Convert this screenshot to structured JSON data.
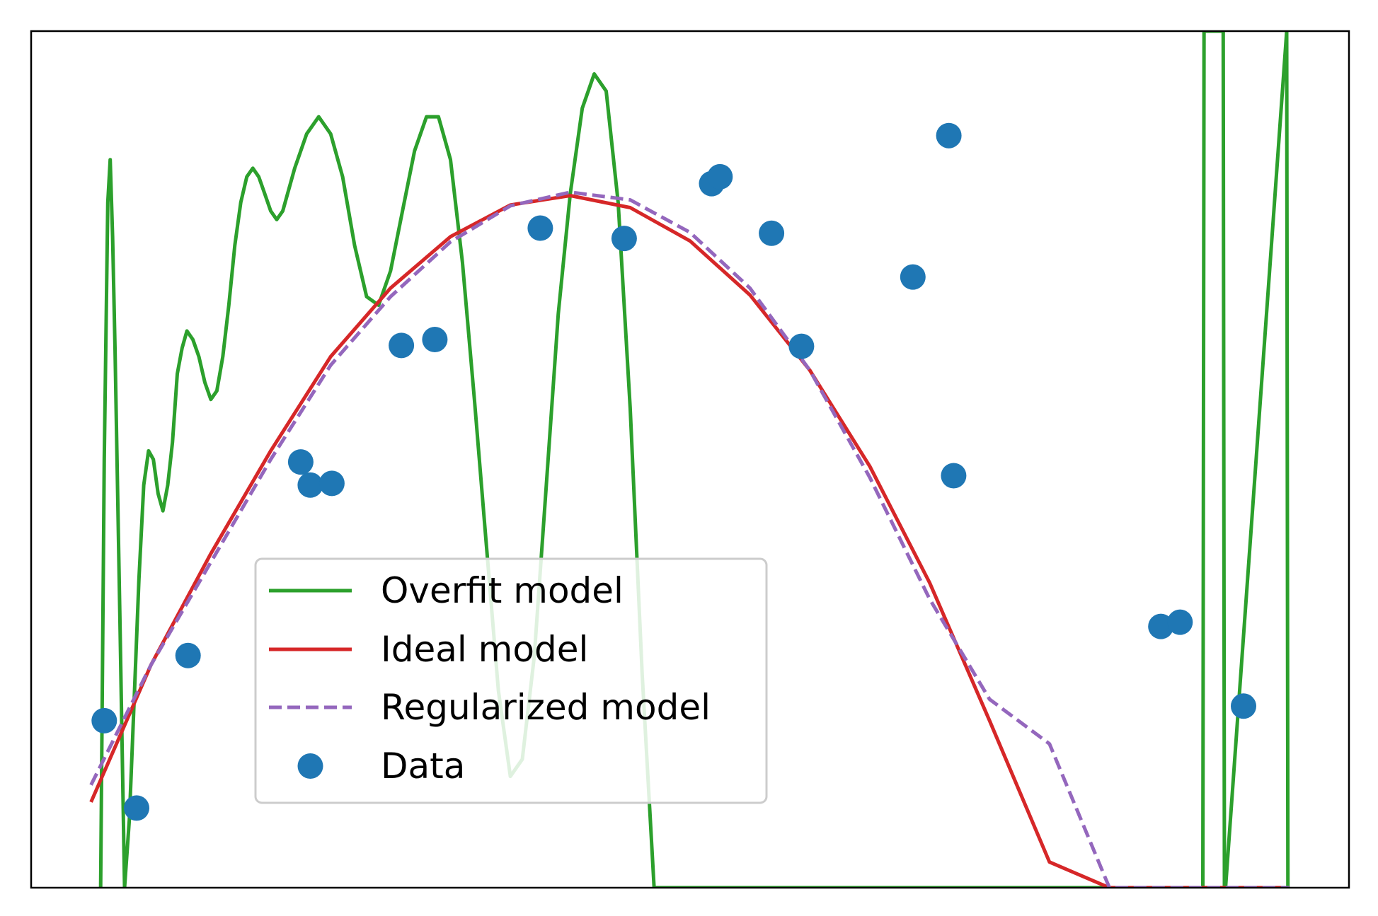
{
  "chart_data": {
    "type": "line",
    "title": "",
    "xlabel": "",
    "ylabel": "",
    "xlim": [
      -0.05,
      1.05
    ],
    "ylim": [
      0,
      1
    ],
    "grid": false,
    "legend": {
      "placement": "lower-center",
      "entries": [
        {
          "label": "Overfit model",
          "color": "#2ca02c",
          "style": "solid"
        },
        {
          "label": "Ideal model",
          "color": "#d62728",
          "style": "solid"
        },
        {
          "label": "Regularized model",
          "color": "#9467bd",
          "style": "dashed"
        },
        {
          "label": "Data",
          "color": "#1f77b4",
          "style": "marker"
        }
      ]
    },
    "series": [
      {
        "kind": "line",
        "color": "#2ca02c",
        "style": "solid",
        "x": [
          0.008,
          0.011,
          0.014,
          0.016,
          0.018,
          0.02,
          0.024,
          0.028,
          0.032,
          0.036,
          0.04,
          0.044,
          0.048,
          0.052,
          0.056,
          0.06,
          0.064,
          0.068,
          0.072,
          0.076,
          0.08,
          0.085,
          0.09,
          0.095,
          0.1,
          0.105,
          0.11,
          0.115,
          0.12,
          0.125,
          0.13,
          0.135,
          0.14,
          0.145,
          0.15,
          0.155,
          0.16,
          0.17,
          0.18,
          0.19,
          0.2,
          0.21,
          0.22,
          0.23,
          0.24,
          0.25,
          0.26,
          0.27,
          0.28,
          0.29,
          0.3,
          0.31,
          0.32,
          0.33,
          0.34,
          0.35,
          0.36,
          0.37,
          0.38,
          0.39,
          0.4,
          0.41,
          0.42,
          0.43,
          0.44,
          0.45,
          0.46,
          0.47,
          0.48,
          0.49,
          0.5,
          0.51,
          0.52,
          0.53,
          0.54,
          0.55,
          0.56,
          0.57,
          0.58,
          0.59,
          0.6,
          0.61,
          0.62,
          0.63,
          0.64,
          0.65,
          0.66,
          0.67,
          0.68,
          0.69,
          0.7,
          0.705,
          0.71,
          0.715,
          0.72,
          0.725,
          0.73,
          0.735,
          0.74,
          0.745,
          0.75,
          0.755,
          0.76,
          0.765,
          0.77,
          0.775,
          0.78,
          0.785,
          0.79,
          0.928,
          0.929,
          0.93,
          0.945,
          0.946,
          0.947,
          0.998,
          0.998,
          0.999
        ],
        "y": [
          0.0,
          0.5,
          0.8,
          0.85,
          0.76,
          0.63,
          0.32,
          0.0,
          0.08,
          0.22,
          0.36,
          0.47,
          0.51,
          0.5,
          0.46,
          0.44,
          0.47,
          0.52,
          0.6,
          0.63,
          0.65,
          0.64,
          0.62,
          0.59,
          0.57,
          0.58,
          0.62,
          0.68,
          0.75,
          0.8,
          0.83,
          0.84,
          0.83,
          0.81,
          0.79,
          0.78,
          0.79,
          0.84,
          0.88,
          0.9,
          0.88,
          0.83,
          0.75,
          0.69,
          0.68,
          0.72,
          0.79,
          0.86,
          0.9,
          0.9,
          0.85,
          0.73,
          0.57,
          0.4,
          0.23,
          0.13,
          0.15,
          0.27,
          0.47,
          0.67,
          0.81,
          0.91,
          0.95,
          0.93,
          0.8,
          0.56,
          0.25,
          0.0,
          0.0,
          0.0,
          0.0,
          0.0,
          0.0,
          0.0,
          0.0,
          0.0,
          0.0,
          0.0,
          0.0,
          0.0,
          0.0,
          0.0,
          0.0,
          0.0,
          0.0,
          0.0,
          0.0,
          0.0,
          0.0,
          0.0,
          0.0,
          0.0,
          0.0,
          0.0,
          0.0,
          0.0,
          0.0,
          0.0,
          0.0,
          0.0,
          0.0,
          0.0,
          0.0,
          0.0,
          0.0,
          0.0,
          0.0,
          0.0,
          0.0,
          0.0,
          1.0,
          1.0,
          1.0,
          0.0,
          0.0,
          1.0,
          1.0,
          0.0
        ]
      },
      {
        "kind": "line",
        "color": "#d62728",
        "style": "solid",
        "x": [
          0.0,
          0.05,
          0.1,
          0.15,
          0.2,
          0.25,
          0.3,
          0.35,
          0.4,
          0.45,
          0.5,
          0.55,
          0.6,
          0.65,
          0.7,
          0.75,
          0.8,
          0.85,
          0.9,
          0.95,
          1.0
        ],
        "y": [
          0.1,
          0.26,
          0.39,
          0.51,
          0.62,
          0.7,
          0.76,
          0.797,
          0.808,
          0.794,
          0.755,
          0.692,
          0.604,
          0.492,
          0.356,
          0.195,
          0.03,
          0.0,
          0.0,
          0.0,
          0.0
        ]
      },
      {
        "kind": "line",
        "color": "#9467bd",
        "style": "dashed",
        "x": [
          0.0,
          0.05,
          0.1,
          0.15,
          0.2,
          0.25,
          0.3,
          0.35,
          0.4,
          0.45,
          0.5,
          0.55,
          0.6,
          0.65,
          0.7,
          0.75,
          0.8,
          0.85,
          0.9,
          0.95,
          1.0
        ],
        "y": [
          0.12,
          0.26,
          0.38,
          0.5,
          0.61,
          0.69,
          0.754,
          0.796,
          0.812,
          0.803,
          0.765,
          0.7,
          0.604,
          0.479,
          0.337,
          0.22,
          0.168,
          0.0,
          0.0,
          0.0,
          0.0
        ]
      },
      {
        "kind": "scatter",
        "color": "#1f77b4",
        "x": [
          0.011,
          0.038,
          0.081,
          0.175,
          0.183,
          0.201,
          0.259,
          0.287,
          0.375,
          0.445,
          0.518,
          0.525,
          0.568,
          0.593,
          0.686,
          0.716,
          0.72,
          0.893,
          0.909,
          0.962
        ],
        "y": [
          0.195,
          0.093,
          0.271,
          0.497,
          0.47,
          0.472,
          0.633,
          0.64,
          0.77,
          0.758,
          0.822,
          0.83,
          0.764,
          0.632,
          0.713,
          0.878,
          0.481,
          0.305,
          0.31,
          0.212
        ]
      }
    ]
  }
}
